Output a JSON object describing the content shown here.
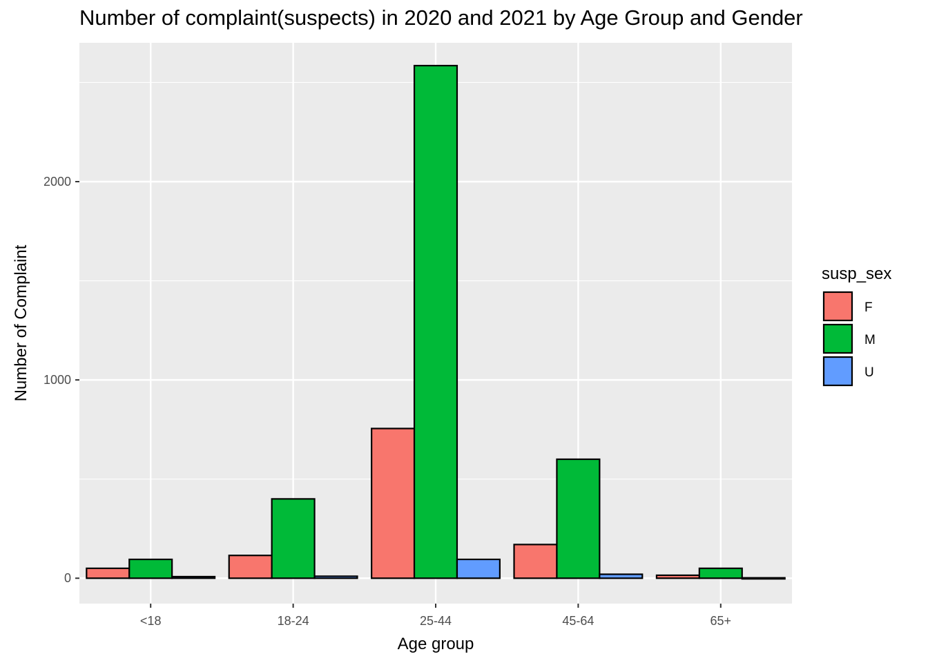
{
  "chart_data": {
    "type": "bar",
    "title": "Number of complaint(suspects) in 2020 and 2021 by Age Group and Gender",
    "xlabel": "Age group",
    "ylabel": "Number of Complaint",
    "categories": [
      "<18",
      "18-24",
      "25-44",
      "45-64",
      "65+"
    ],
    "series": [
      {
        "name": "F",
        "color": "#F8766D",
        "values": [
          50,
          115,
          755,
          170,
          15
        ]
      },
      {
        "name": "M",
        "color": "#00BA38",
        "values": [
          95,
          400,
          2585,
          600,
          50
        ]
      },
      {
        "name": "U",
        "color": "#619CFF",
        "values": [
          8,
          10,
          95,
          20,
          2
        ]
      }
    ],
    "ylim": [
      -128,
      2700
    ],
    "yticks": [
      0,
      1000,
      2000
    ],
    "grid": true,
    "legend_title": "susp_sex",
    "legend_position": "right"
  }
}
